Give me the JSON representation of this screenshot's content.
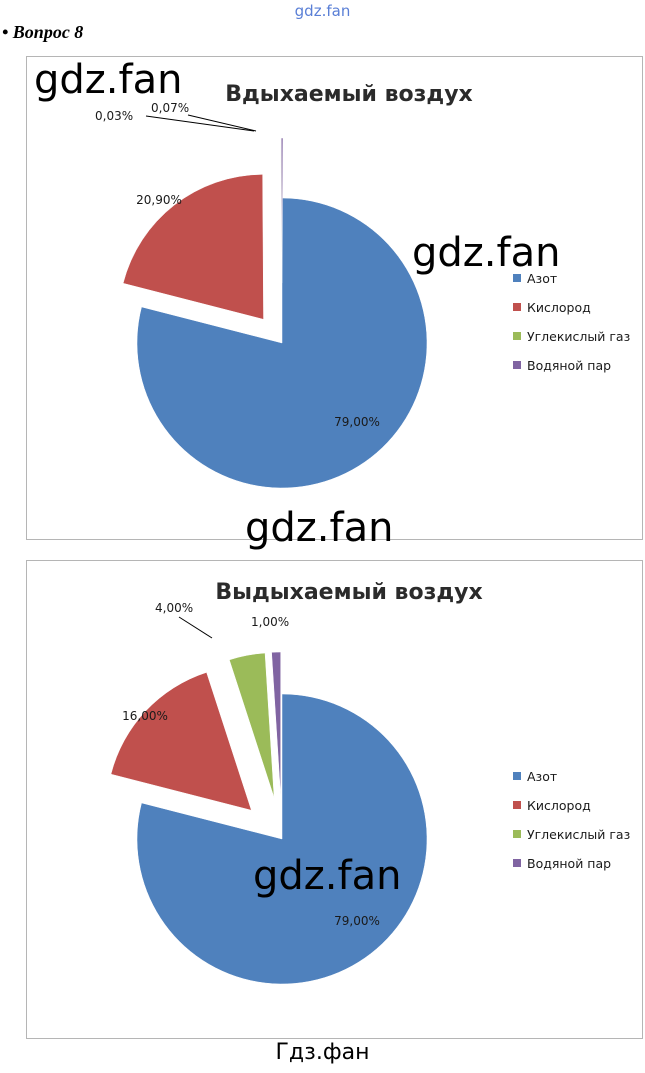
{
  "page": {
    "top_watermark": "gdz.fan",
    "question": "• Вопрос 8",
    "watermark": "gdz.fan",
    "footer": "Гдз.фан"
  },
  "chart_data": [
    {
      "type": "pie",
      "title": "Вдыхаемый воздух",
      "labels": [
        "Азот",
        "Кислород",
        "Углекислый газ",
        "Водяной пар"
      ],
      "values": [
        79.0,
        20.9,
        0.03,
        0.07
      ],
      "data_labels": [
        "79,00%",
        "20,90%",
        "0,03%",
        "0,07%"
      ],
      "colors": [
        "#4f81bd",
        "#c0504d",
        "#9bbb59",
        "#8064a2"
      ],
      "exploded": true,
      "legend_position": "right"
    },
    {
      "type": "pie",
      "title": "Выдыхаемый воздух",
      "labels": [
        "Азот",
        "Кислород",
        "Углекислый газ",
        "Водяной пар"
      ],
      "values": [
        79.0,
        16.0,
        4.0,
        1.0
      ],
      "data_labels": [
        "79,00%",
        "16,00%",
        "4,00%",
        "1,00%"
      ],
      "colors": [
        "#4f81bd",
        "#c0504d",
        "#9bbb59",
        "#8064a2"
      ],
      "exploded": true,
      "legend_position": "right"
    }
  ]
}
